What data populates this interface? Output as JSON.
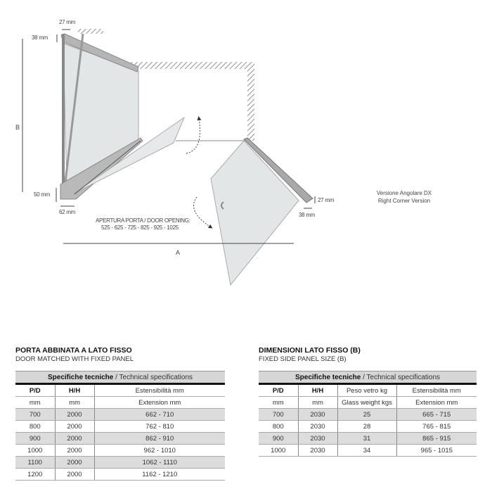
{
  "diagram": {
    "dimensions": {
      "top_width": "27 mm",
      "top_height": "38 mm",
      "bottom_height": "50 mm",
      "bottom_width": "62 mm",
      "right_height": "27 mm",
      "right_width": "38 mm",
      "label_a": "A",
      "label_b": "B"
    },
    "door_opening_label": "APERTURA PORTA / DOOR OPENING:",
    "door_opening_values": "525 - 625 - 725 - 825 - 925 - 1025",
    "version_it": "Versione Angolare DX",
    "version_en": "Right Corner Version"
  },
  "left_section": {
    "title": "PORTA ABBINATA A LATO FISSO",
    "subtitle": "DOOR MATCHED WITH FIXED PANEL",
    "caption_bold": "Specifiche tecniche",
    "caption_rest": " / Technical specifications",
    "headers": [
      "P/D",
      "H/H",
      "Estensibilità mm"
    ],
    "units": [
      "mm",
      "mm",
      "Extension mm"
    ],
    "rows": [
      [
        "700",
        "2000",
        "662 - 710"
      ],
      [
        "800",
        "2000",
        "762 - 810"
      ],
      [
        "900",
        "2000",
        "862 - 910"
      ],
      [
        "1000",
        "2000",
        "962 - 1010"
      ],
      [
        "1100",
        "2000",
        "1062 - 1110"
      ],
      [
        "1200",
        "2000",
        "1162 - 1210"
      ]
    ]
  },
  "right_section": {
    "title": "DIMENSIONI LATO FISSO (B)",
    "subtitle": "FIXED SIDE PANEL SIZE (B)",
    "caption_bold": "Specifiche tecniche",
    "caption_rest": " / Technical specifications",
    "headers": [
      "P/D",
      "H/H",
      "Peso vetro kg",
      "Estensibilità mm"
    ],
    "units": [
      "mm",
      "mm",
      "Glass weight kgs",
      "Extension mm"
    ],
    "rows": [
      [
        "700",
        "2030",
        "25",
        "665 - 715"
      ],
      [
        "800",
        "2030",
        "28",
        "765 - 815"
      ],
      [
        "900",
        "2030",
        "31",
        "865 - 915"
      ],
      [
        "1000",
        "2030",
        "34",
        "965 - 1015"
      ]
    ]
  }
}
